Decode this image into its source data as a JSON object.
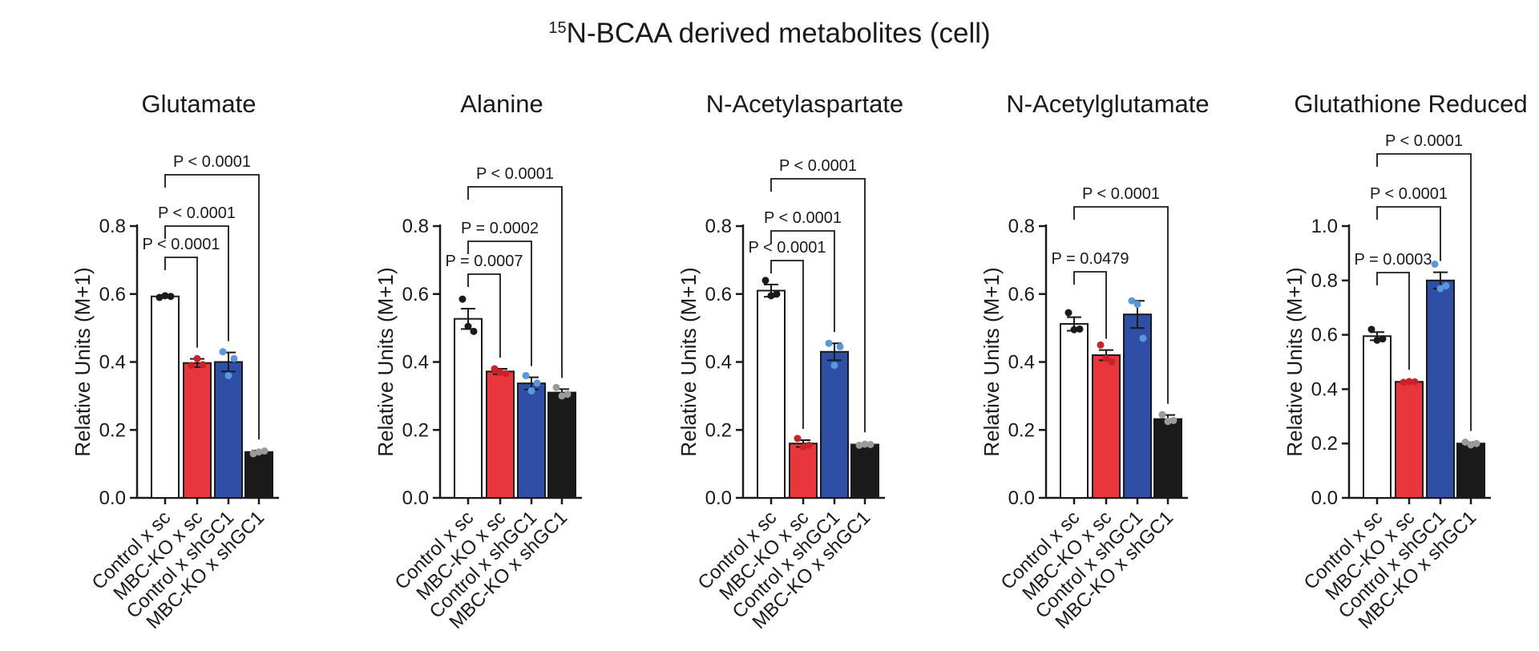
{
  "figure": {
    "title_superscript": "15",
    "title_main": "N-BCAA derived metabolites (cell)"
  },
  "colors": {
    "Control x sc": "#ffffff",
    "MBC-KO x sc": "#e8363c",
    "Control x shGC1": "#2f4fa6",
    "MBC-KO x shGC1": "#1a1a1a",
    "dot_Control x sc": "#1a1a1a",
    "dot_MBC-KO x sc": "#c8232a",
    "dot_Control x shGC1": "#5b97db",
    "dot_MBC-KO x shGC1": "#9a9a9a"
  },
  "chart_data": [
    {
      "type": "bar",
      "title": "Glutamate",
      "ylabel": "Relative Units  (M+1)",
      "ylim": [
        0,
        0.8
      ],
      "yticks": [
        "0.0",
        "0.2",
        "0.4",
        "0.6",
        "0.8"
      ],
      "categories": [
        "Control x sc",
        "MBC-KO x sc",
        "Control x shGC1",
        "MBC-KO x shGC1"
      ],
      "values": [
        0.593,
        0.397,
        0.4,
        0.135
      ],
      "errors": [
        0.004,
        0.012,
        0.028,
        0.004
      ],
      "points": [
        [
          0.59,
          0.595,
          0.593
        ],
        [
          0.39,
          0.41,
          0.392
        ],
        [
          0.43,
          0.36,
          0.41
        ],
        [
          0.13,
          0.135,
          0.138
        ]
      ],
      "brackets": [
        {
          "from": 0,
          "to": 1,
          "label": "P < 0.0001"
        },
        {
          "from": 0,
          "to": 2,
          "label": "P < 0.0001"
        },
        {
          "from": 0,
          "to": 3,
          "label": "P < 0.0001"
        }
      ]
    },
    {
      "type": "bar",
      "title": "Alanine",
      "ylabel": "Relative Units  (M+1)",
      "ylim": [
        0,
        0.8
      ],
      "yticks": [
        "0.0",
        "0.2",
        "0.4",
        "0.6",
        "0.8"
      ],
      "categories": [
        "Control x sc",
        "MBC-KO x sc",
        "Control x shGC1",
        "MBC-KO x shGC1"
      ],
      "values": [
        0.527,
        0.372,
        0.337,
        0.31
      ],
      "errors": [
        0.03,
        0.008,
        0.018,
        0.01
      ],
      "points": [
        [
          0.585,
          0.505,
          0.49
        ],
        [
          0.38,
          0.37,
          0.366
        ],
        [
          0.36,
          0.315,
          0.338
        ],
        [
          0.325,
          0.3,
          0.305
        ]
      ],
      "brackets": [
        {
          "from": 0,
          "to": 1,
          "label": "P = 0.0007"
        },
        {
          "from": 0,
          "to": 2,
          "label": "P = 0.0002"
        },
        {
          "from": 0,
          "to": 3,
          "label": "P < 0.0001"
        }
      ]
    },
    {
      "type": "bar",
      "title": "N-Acetylaspartate",
      "ylabel": "Relative Units  (M+1)",
      "ylim": [
        0,
        0.8
      ],
      "yticks": [
        "0.0",
        "0.2",
        "0.4",
        "0.6",
        "0.8"
      ],
      "categories": [
        "Control x sc",
        "MBC-KO x sc",
        "Control x shGC1",
        "MBC-KO x shGC1"
      ],
      "values": [
        0.61,
        0.16,
        0.43,
        0.157
      ],
      "errors": [
        0.018,
        0.01,
        0.025,
        0.003
      ],
      "points": [
        [
          0.64,
          0.595,
          0.6
        ],
        [
          0.175,
          0.15,
          0.155
        ],
        [
          0.455,
          0.39,
          0.445
        ],
        [
          0.155,
          0.158,
          0.157
        ]
      ],
      "brackets": [
        {
          "from": 0,
          "to": 1,
          "label": "P < 0.0001"
        },
        {
          "from": 0,
          "to": 2,
          "label": "P < 0.0001"
        },
        {
          "from": 0,
          "to": 3,
          "label": "P < 0.0001"
        }
      ]
    },
    {
      "type": "bar",
      "title": "N-Acetylglutamate",
      "ylabel": "Relative Units  (M+1)",
      "ylim": [
        0,
        0.8
      ],
      "yticks": [
        "0.0",
        "0.2",
        "0.4",
        "0.6",
        "0.8"
      ],
      "categories": [
        "Control x sc",
        "MBC-KO x sc",
        "Control x shGC1",
        "MBC-KO x shGC1"
      ],
      "values": [
        0.512,
        0.42,
        0.54,
        0.232
      ],
      "errors": [
        0.02,
        0.015,
        0.04,
        0.012
      ],
      "points": [
        [
          0.545,
          0.495,
          0.497
        ],
        [
          0.45,
          0.41,
          0.4
        ],
        [
          0.58,
          0.57,
          0.47
        ],
        [
          0.245,
          0.225,
          0.228
        ]
      ],
      "brackets": [
        {
          "from": 0,
          "to": 1,
          "label": "P  = 0.0479"
        },
        {
          "from": 0,
          "to": 3,
          "label": "P < 0.0001"
        }
      ]
    },
    {
      "type": "bar",
      "title": "Glutathione Reduced",
      "ylabel": "Relative Units  (M+1)",
      "ylim": [
        0,
        1.0
      ],
      "yticks": [
        "0.0",
        "0.2",
        "0.4",
        "0.6",
        "0.8",
        "1.0"
      ],
      "categories": [
        "Control x sc",
        "MBC-KO x sc",
        "Control x shGC1",
        "MBC-KO x shGC1"
      ],
      "values": [
        0.595,
        0.427,
        0.8,
        0.2
      ],
      "errors": [
        0.015,
        0.003,
        0.03,
        0.005
      ],
      "points": [
        [
          0.62,
          0.58,
          0.585
        ],
        [
          0.425,
          0.428,
          0.427
        ],
        [
          0.86,
          0.77,
          0.78
        ],
        [
          0.205,
          0.195,
          0.2
        ]
      ],
      "brackets": [
        {
          "from": 0,
          "to": 1,
          "label": "P = 0.0003"
        },
        {
          "from": 0,
          "to": 2,
          "label": "P < 0.0001"
        },
        {
          "from": 0,
          "to": 3,
          "label": "P < 0.0001"
        }
      ]
    }
  ]
}
